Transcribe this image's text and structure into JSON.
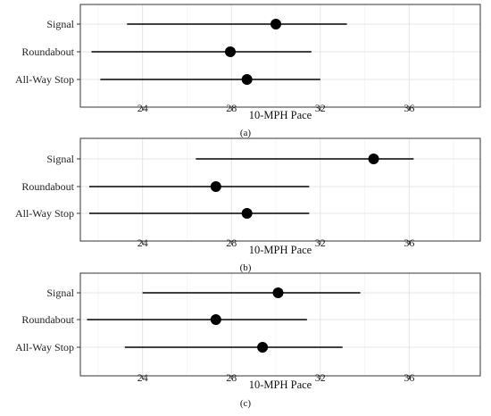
{
  "chart_data": [
    {
      "type": "dot-interval",
      "panel_label": "(a)",
      "xlabel": "10-MPH Pace",
      "xticks": [
        24,
        28,
        32,
        36
      ],
      "xlim": [
        21.2,
        39.2
      ],
      "categories": [
        "Signal",
        "Roundabout",
        "All-Way Stop"
      ],
      "points": [
        30.0,
        27.95,
        28.7
      ],
      "low": [
        23.3,
        21.7,
        22.1
      ],
      "high": [
        33.2,
        31.6,
        32.0
      ],
      "grid": true
    },
    {
      "type": "dot-interval",
      "panel_label": "(b)",
      "xlabel": "10-MPH Pace",
      "xticks": [
        24,
        28,
        32,
        36
      ],
      "xlim": [
        21.2,
        39.2
      ],
      "categories": [
        "Signal",
        "Roundabout",
        "All-Way Stop"
      ],
      "points": [
        34.4,
        27.3,
        28.7
      ],
      "low": [
        26.4,
        21.6,
        21.6
      ],
      "high": [
        36.2,
        31.5,
        31.5
      ],
      "grid": true
    },
    {
      "type": "dot-interval",
      "panel_label": "(c)",
      "xlabel": "10-MPH Pace",
      "xticks": [
        24,
        28,
        32,
        36
      ],
      "xlim": [
        21.2,
        39.2
      ],
      "categories": [
        "Signal",
        "Roundabout",
        "All-Way Stop"
      ],
      "points": [
        30.1,
        27.3,
        29.4
      ],
      "low": [
        24.0,
        21.5,
        23.2
      ],
      "high": [
        33.8,
        31.4,
        33.0
      ],
      "grid": true
    }
  ]
}
